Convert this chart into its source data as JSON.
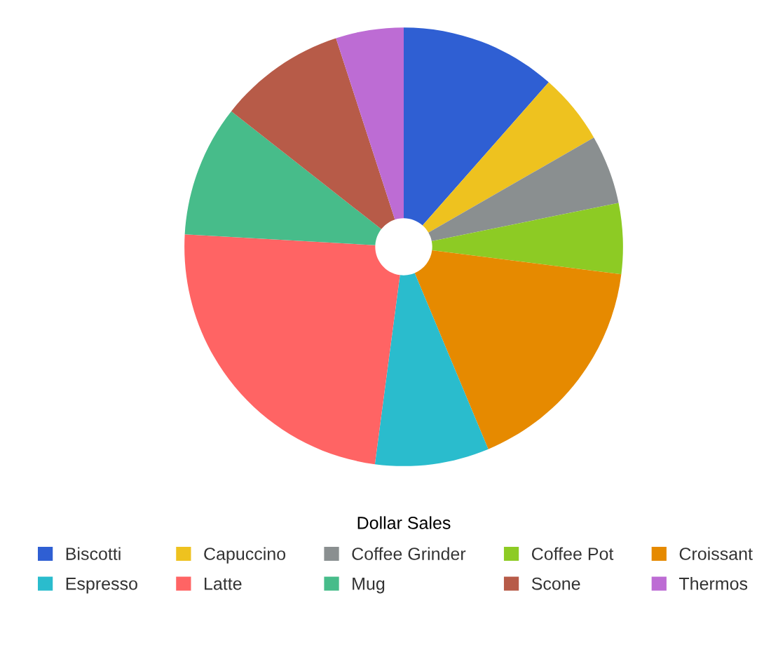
{
  "chart_data": {
    "type": "donut",
    "title": "Dollar Sales",
    "categories": [
      "Biscotti",
      "Capuccino",
      "Coffee Grinder",
      "Coffee Pot",
      "Croissant",
      "Espresso",
      "Latte",
      "Mug",
      "Scone",
      "Thermos"
    ],
    "values": [
      11.5,
      5.2,
      5.1,
      5.2,
      16.7,
      8.4,
      23.8,
      9.7,
      9.4,
      5.0
    ],
    "colors": [
      "#2f5fd3",
      "#eec21f",
      "#8a8f90",
      "#8dcb24",
      "#e68a00",
      "#2abccd",
      "#ff6464",
      "#47bc8a",
      "#b75b48",
      "#bd6cd4"
    ],
    "legend": "bottom"
  }
}
